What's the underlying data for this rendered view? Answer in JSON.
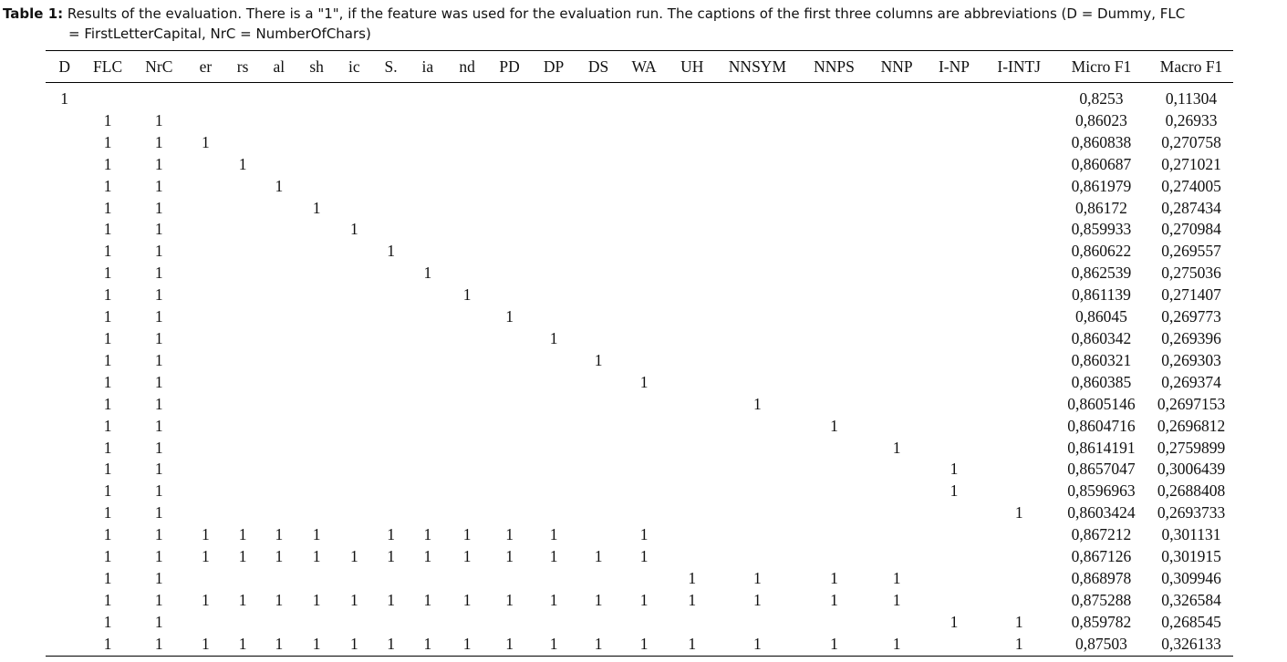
{
  "caption": {
    "label": "Table 1:",
    "text_line1": "Results of the evaluation. There is a \"1\", if the feature was used for the evaluation run. The captions of the first three columns are abbreviations (D = Dummy, FLC",
    "text_line2": "= FirstLetterCapital, NrC = NumberOfChars)"
  },
  "table": {
    "headers": [
      "D",
      "FLC",
      "NrC",
      "er",
      "rs",
      "al",
      "sh",
      "ic",
      "S.",
      "ia",
      "nd",
      "PD",
      "DP",
      "DS",
      "WA",
      "UH",
      "NNSYM",
      "NNPS",
      "NNP",
      "I-NP",
      "I-INTJ",
      "Micro F1",
      "Macro F1"
    ],
    "rows": [
      [
        "1",
        "",
        "",
        "",
        "",
        "",
        "",
        "",
        "",
        "",
        "",
        "",
        "",
        "",
        "",
        "",
        "",
        "",
        "",
        "",
        "",
        "0,8253",
        "0,11304"
      ],
      [
        "",
        "1",
        "1",
        "",
        "",
        "",
        "",
        "",
        "",
        "",
        "",
        "",
        "",
        "",
        "",
        "",
        "",
        "",
        "",
        "",
        "",
        "0,86023",
        "0,26933"
      ],
      [
        "",
        "1",
        "1",
        "1",
        "",
        "",
        "",
        "",
        "",
        "",
        "",
        "",
        "",
        "",
        "",
        "",
        "",
        "",
        "",
        "",
        "",
        "0,860838",
        "0,270758"
      ],
      [
        "",
        "1",
        "1",
        "",
        "1",
        "",
        "",
        "",
        "",
        "",
        "",
        "",
        "",
        "",
        "",
        "",
        "",
        "",
        "",
        "",
        "",
        "0,860687",
        "0,271021"
      ],
      [
        "",
        "1",
        "1",
        "",
        "",
        "1",
        "",
        "",
        "",
        "",
        "",
        "",
        "",
        "",
        "",
        "",
        "",
        "",
        "",
        "",
        "",
        "0,861979",
        "0,274005"
      ],
      [
        "",
        "1",
        "1",
        "",
        "",
        "",
        "1",
        "",
        "",
        "",
        "",
        "",
        "",
        "",
        "",
        "",
        "",
        "",
        "",
        "",
        "",
        "0,86172",
        "0,287434"
      ],
      [
        "",
        "1",
        "1",
        "",
        "",
        "",
        "",
        "1",
        "",
        "",
        "",
        "",
        "",
        "",
        "",
        "",
        "",
        "",
        "",
        "",
        "",
        "0,859933",
        "0,270984"
      ],
      [
        "",
        "1",
        "1",
        "",
        "",
        "",
        "",
        "",
        "1",
        "",
        "",
        "",
        "",
        "",
        "",
        "",
        "",
        "",
        "",
        "",
        "",
        "0,860622",
        "0,269557"
      ],
      [
        "",
        "1",
        "1",
        "",
        "",
        "",
        "",
        "",
        "",
        "1",
        "",
        "",
        "",
        "",
        "",
        "",
        "",
        "",
        "",
        "",
        "",
        "0,862539",
        "0,275036"
      ],
      [
        "",
        "1",
        "1",
        "",
        "",
        "",
        "",
        "",
        "",
        "",
        "1",
        "",
        "",
        "",
        "",
        "",
        "",
        "",
        "",
        "",
        "",
        "0,861139",
        "0,271407"
      ],
      [
        "",
        "1",
        "1",
        "",
        "",
        "",
        "",
        "",
        "",
        "",
        "",
        "1",
        "",
        "",
        "",
        "",
        "",
        "",
        "",
        "",
        "",
        "0,86045",
        "0,269773"
      ],
      [
        "",
        "1",
        "1",
        "",
        "",
        "",
        "",
        "",
        "",
        "",
        "",
        "",
        "1",
        "",
        "",
        "",
        "",
        "",
        "",
        "",
        "",
        "0,860342",
        "0,269396"
      ],
      [
        "",
        "1",
        "1",
        "",
        "",
        "",
        "",
        "",
        "",
        "",
        "",
        "",
        "",
        "1",
        "",
        "",
        "",
        "",
        "",
        "",
        "",
        "0,860321",
        "0,269303"
      ],
      [
        "",
        "1",
        "1",
        "",
        "",
        "",
        "",
        "",
        "",
        "",
        "",
        "",
        "",
        "",
        "1",
        "",
        "",
        "",
        "",
        "",
        "",
        "0,860385",
        "0,269374"
      ],
      [
        "",
        "1",
        "1",
        "",
        "",
        "",
        "",
        "",
        "",
        "",
        "",
        "",
        "",
        "",
        "",
        "",
        "1",
        "",
        "",
        "",
        "",
        "0,8605146",
        "0,2697153"
      ],
      [
        "",
        "1",
        "1",
        "",
        "",
        "",
        "",
        "",
        "",
        "",
        "",
        "",
        "",
        "",
        "",
        "",
        "",
        "1",
        "",
        "",
        "",
        "0,8604716",
        "0,2696812"
      ],
      [
        "",
        "1",
        "1",
        "",
        "",
        "",
        "",
        "",
        "",
        "",
        "",
        "",
        "",
        "",
        "",
        "",
        "",
        "",
        "1",
        "",
        "",
        "0,8614191",
        "0,2759899"
      ],
      [
        "",
        "1",
        "1",
        "",
        "",
        "",
        "",
        "",
        "",
        "",
        "",
        "",
        "",
        "",
        "",
        "",
        "",
        "",
        "",
        "1",
        "",
        "0,8657047",
        "0,3006439"
      ],
      [
        "",
        "1",
        "1",
        "",
        "",
        "",
        "",
        "",
        "",
        "",
        "",
        "",
        "",
        "",
        "",
        "",
        "",
        "",
        "",
        "1",
        "",
        "0,8596963",
        "0,2688408"
      ],
      [
        "",
        "1",
        "1",
        "",
        "",
        "",
        "",
        "",
        "",
        "",
        "",
        "",
        "",
        "",
        "",
        "",
        "",
        "",
        "",
        "",
        "1",
        "0,8603424",
        "0,2693733"
      ],
      [
        "",
        "1",
        "1",
        "1",
        "1",
        "1",
        "1",
        "",
        "1",
        "1",
        "1",
        "1",
        "1",
        "",
        "1",
        "",
        "",
        "",
        "",
        "",
        "",
        "0,867212",
        "0,301131"
      ],
      [
        "",
        "1",
        "1",
        "1",
        "1",
        "1",
        "1",
        "1",
        "1",
        "1",
        "1",
        "1",
        "1",
        "1",
        "1",
        "",
        "",
        "",
        "",
        "",
        "",
        "0,867126",
        "0,301915"
      ],
      [
        "",
        "1",
        "1",
        "",
        "",
        "",
        "",
        "",
        "",
        "",
        "",
        "",
        "",
        "",
        "",
        "1",
        "1",
        "1",
        "1",
        "",
        "",
        "0,868978",
        "0,309946"
      ],
      [
        "",
        "1",
        "1",
        "1",
        "1",
        "1",
        "1",
        "1",
        "1",
        "1",
        "1",
        "1",
        "1",
        "1",
        "1",
        "1",
        "1",
        "1",
        "1",
        "",
        "",
        "0,875288",
        "0,326584"
      ],
      [
        "",
        "1",
        "1",
        "",
        "",
        "",
        "",
        "",
        "",
        "",
        "",
        "",
        "",
        "",
        "",
        "",
        "",
        "",
        "",
        "1",
        "1",
        "0,859782",
        "0,268545"
      ],
      [
        "",
        "1",
        "1",
        "1",
        "1",
        "1",
        "1",
        "1",
        "1",
        "1",
        "1",
        "1",
        "1",
        "1",
        "1",
        "1",
        "1",
        "1",
        "1",
        "",
        "1",
        "0,87503",
        "0,326133"
      ]
    ]
  }
}
